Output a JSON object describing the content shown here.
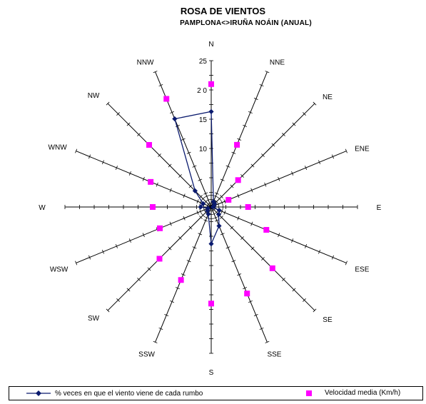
{
  "chart_data": {
    "type": "radar",
    "title": "ROSA DE VIENTOS",
    "subtitle": "PAMPLONA<>IRUÑA NOÁIN (ANUAL)",
    "directions": [
      "N",
      "NNE",
      "NE",
      "ENE",
      "E",
      "ESE",
      "SE",
      "SSE",
      "S",
      "SSW",
      "SW",
      "WSW",
      "W",
      "WNW",
      "NW",
      "NNW"
    ],
    "r_max": 25,
    "r_ticks": [
      5,
      10,
      15,
      20,
      25
    ],
    "r_tick_labels": [
      "10",
      "15",
      "2 0",
      "25"
    ],
    "grid": true,
    "legend_position": "bottom",
    "series": [
      {
        "name": "% veces en que el viento viene de cada rumbo",
        "kind": "line",
        "color": "#0a1a6e",
        "values": [
          16.3,
          1.0,
          0.8,
          0.5,
          0.3,
          1.5,
          1.8,
          3.5,
          6.3,
          1.3,
          0.9,
          0.6,
          1.8,
          1.5,
          3.9,
          16.3
        ]
      },
      {
        "name": "Velocidad media (Km/h)",
        "kind": "markers",
        "color": "#ff00ff",
        "values": [
          21.0,
          11.5,
          6.5,
          3.2,
          6.3,
          10.2,
          14.8,
          16.0,
          16.5,
          13.5,
          12.5,
          9.5,
          10.0,
          11.2,
          15.0,
          20.0
        ]
      }
    ]
  },
  "legend": {
    "series1_label": "% veces en que el viento viene de cada rumbo",
    "series2_label": "Velocidad media (Km/h)"
  }
}
